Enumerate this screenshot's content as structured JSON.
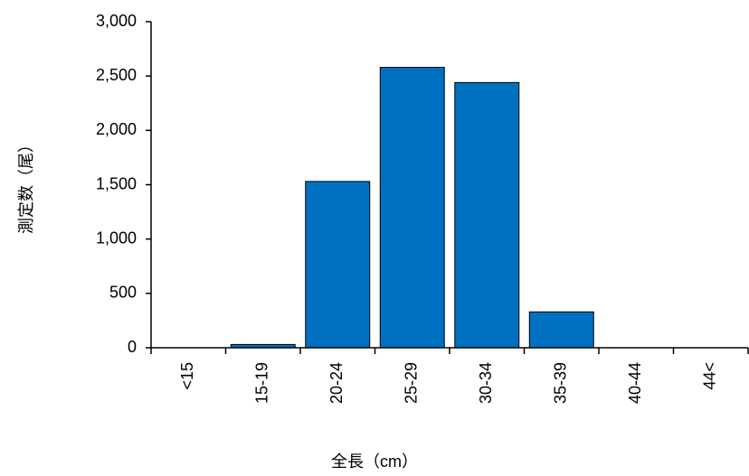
{
  "chart_data": {
    "type": "bar",
    "x_label": "全長（cm）",
    "y_label": "測定数（尾）",
    "categories": [
      "<15",
      "15-19",
      "20-24",
      "25-29",
      "30-34",
      "35-39",
      "40-44",
      "44<"
    ],
    "values": [
      0,
      30,
      1530,
      2580,
      2440,
      330,
      0,
      0
    ],
    "color": "#0070c0",
    "ylim": [
      0,
      3000
    ],
    "yticks": [
      0,
      500,
      {
        "value": 1000,
        "label": "1,000"
      },
      {
        "value": 1500,
        "label": "1,500"
      },
      {
        "value": 2000,
        "label": "2,000"
      },
      {
        "value": 2500,
        "label": "2,500"
      },
      {
        "value": 3000,
        "label": "3,000"
      }
    ],
    "grid": false
  }
}
